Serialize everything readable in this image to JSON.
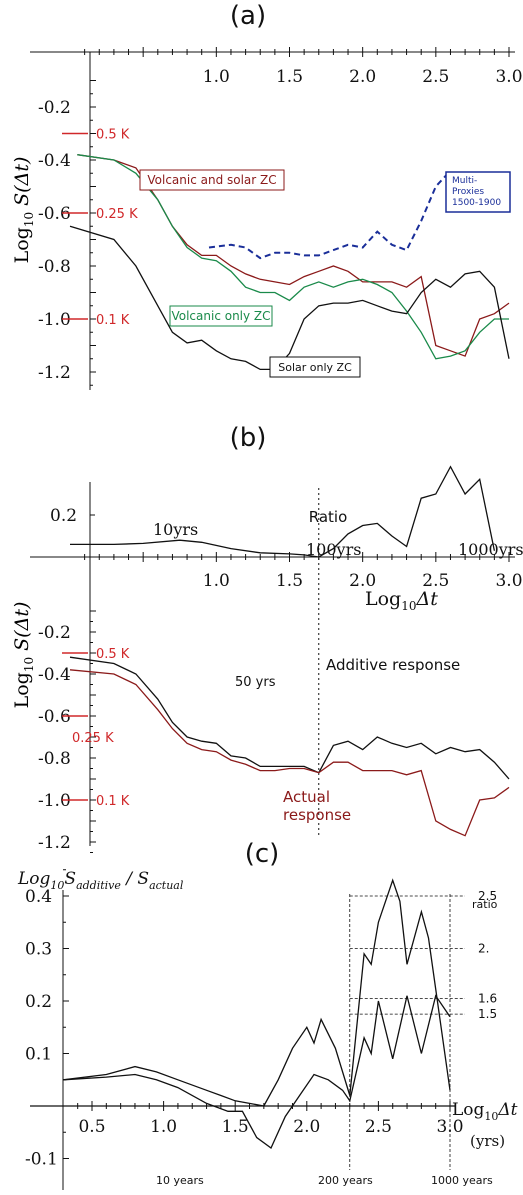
{
  "chart_data": [
    {
      "panel": "(a)",
      "type": "line",
      "xlim": [
        0.0,
        3.0
      ],
      "ylim": [
        -1.25,
        -0.1
      ],
      "x_ticks": [
        "1.0",
        "1.5",
        "2.0",
        "2.5",
        "3.0"
      ],
      "y_ticks": [
        "-0.2",
        "-0.4",
        "-0.6",
        "-0.8",
        "-1.0",
        "-1.2"
      ],
      "ylabel_main": "Log",
      "ylabel_sub": "10",
      "ylabel_rest": " S(Δt)",
      "temp_marks": [
        {
          "label": "0.5 K",
          "y": -0.3
        },
        {
          "label": "0.25 K",
          "y": -0.6
        },
        {
          "label": "0.1 K",
          "y": -1.0
        }
      ],
      "series": [
        {
          "name": "Volcanic and solar ZC",
          "color": "#8b1a1a",
          "x": [
            0.05,
            0.3,
            0.45,
            0.6,
            0.7,
            0.8,
            0.9,
            1.0,
            1.1,
            1.2,
            1.3,
            1.4,
            1.5,
            1.6,
            1.7,
            1.8,
            1.9,
            2.0,
            2.1,
            2.2,
            2.3,
            2.4,
            2.5,
            2.6,
            2.7,
            2.8,
            2.9,
            3.0
          ],
          "y": [
            -0.38,
            -0.4,
            -0.43,
            -0.55,
            -0.65,
            -0.72,
            -0.76,
            -0.76,
            -0.8,
            -0.83,
            -0.85,
            -0.86,
            -0.87,
            -0.84,
            -0.82,
            -0.8,
            -0.82,
            -0.86,
            -0.86,
            -0.86,
            -0.88,
            -0.84,
            -1.1,
            -1.12,
            -1.14,
            -1.0,
            -0.98,
            -0.94
          ]
        },
        {
          "name": "Volcanic only ZC",
          "color": "#1a8a4a",
          "x": [
            0.05,
            0.3,
            0.45,
            0.6,
            0.7,
            0.8,
            0.9,
            1.0,
            1.1,
            1.2,
            1.3,
            1.4,
            1.5,
            1.6,
            1.7,
            1.8,
            1.9,
            2.0,
            2.1,
            2.2,
            2.3,
            2.4,
            2.5,
            2.6,
            2.7,
            2.8,
            2.9,
            3.0
          ],
          "y": [
            -0.38,
            -0.4,
            -0.45,
            -0.55,
            -0.65,
            -0.73,
            -0.77,
            -0.78,
            -0.82,
            -0.88,
            -0.9,
            -0.9,
            -0.93,
            -0.88,
            -0.86,
            -0.88,
            -0.86,
            -0.85,
            -0.87,
            -0.9,
            -0.97,
            -1.05,
            -1.15,
            -1.14,
            -1.12,
            -1.05,
            -1.0,
            -1.0
          ]
        },
        {
          "name": "Solar only ZC",
          "color": "#111111",
          "x": [
            0.0,
            0.3,
            0.45,
            0.6,
            0.7,
            0.8,
            0.9,
            1.0,
            1.1,
            1.2,
            1.3,
            1.4,
            1.5,
            1.6,
            1.7,
            1.8,
            1.9,
            2.0,
            2.1,
            2.2,
            2.3,
            2.4,
            2.5,
            2.6,
            2.7,
            2.8,
            2.9,
            3.0
          ],
          "y": [
            -0.65,
            -0.7,
            -0.8,
            -0.95,
            -1.05,
            -1.09,
            -1.08,
            -1.12,
            -1.15,
            -1.16,
            -1.19,
            -1.19,
            -1.13,
            -1.0,
            -0.95,
            -0.94,
            -0.94,
            -0.93,
            -0.95,
            -0.97,
            -0.98,
            -0.9,
            -0.85,
            -0.88,
            -0.83,
            -0.82,
            -0.88,
            -1.15
          ]
        },
        {
          "name": "Multi-Proxies 1500-1900",
          "color": "#1a2e99",
          "dashed": true,
          "x": [
            0.95,
            1.1,
            1.2,
            1.3,
            1.4,
            1.5,
            1.6,
            1.7,
            1.8,
            1.9,
            2.0,
            2.1,
            2.2,
            2.3,
            2.4,
            2.5,
            2.6
          ],
          "y": [
            -0.73,
            -0.72,
            -0.73,
            -0.77,
            -0.75,
            -0.75,
            -0.76,
            -0.76,
            -0.74,
            -0.72,
            -0.73,
            -0.67,
            -0.72,
            -0.74,
            -0.63,
            -0.5,
            -0.44
          ]
        }
      ],
      "legend_boxes": [
        {
          "text": "Volcanic and solar ZC",
          "color": "#8b1a1a"
        },
        {
          "text": "Volcanic only ZC",
          "color": "#1a8a4a"
        },
        {
          "text": "Solar only ZC",
          "color": "#111111"
        }
      ],
      "proxy_box": [
        "Multi-",
        "Proxies",
        "1500-1900"
      ]
    },
    {
      "panel": "(b)",
      "type": "line",
      "xlim": [
        0.0,
        3.0
      ],
      "ylim": [
        -1.25,
        -0.1
      ],
      "x_ticks": [
        "1.0",
        "1.5",
        "2.0",
        "2.5",
        "3.0"
      ],
      "y_ticks": [
        "-0.2",
        "-0.4",
        "-0.6",
        "-0.8",
        "-1.0",
        "-1.2"
      ],
      "xlabel_main": "Log",
      "xlabel_sub": "10",
      "xlabel_rest": "Δt",
      "ratio_tick": "0.2",
      "ratio_title": "Ratio",
      "ratio_annotations": [
        "10yrs",
        "100yrs",
        "1000yrs"
      ],
      "vline_label": "50 yrs",
      "additive_label": "Additive response",
      "actual_label": [
        "Actual",
        "response"
      ],
      "temp_marks": [
        {
          "label": "0.5 K",
          "y": -0.3
        },
        {
          "label": "0.25 K",
          "y": -0.6
        },
        {
          "label": "0.1 K",
          "y": -1.0
        }
      ],
      "ratio_series": {
        "name": "Ratio",
        "color": "#111111",
        "x": [
          0.0,
          0.3,
          0.5,
          0.75,
          0.9,
          1.1,
          1.3,
          1.5,
          1.6,
          1.7,
          1.8,
          1.9,
          2.0,
          2.1,
          2.2,
          2.3,
          2.4,
          2.5,
          2.6,
          2.7,
          2.8,
          2.9
        ],
        "y": [
          0.06,
          0.06,
          0.065,
          0.08,
          0.07,
          0.04,
          0.02,
          0.015,
          0.01,
          0.0,
          0.04,
          0.11,
          0.15,
          0.16,
          0.1,
          0.05,
          0.28,
          0.3,
          0.43,
          0.3,
          0.37,
          0.03
        ]
      },
      "series": [
        {
          "name": "Additive response",
          "color": "#111111",
          "x": [
            0.0,
            0.3,
            0.45,
            0.6,
            0.7,
            0.8,
            0.9,
            1.0,
            1.1,
            1.2,
            1.3,
            1.4,
            1.5,
            1.6,
            1.7,
            1.8,
            1.9,
            2.0,
            2.1,
            2.2,
            2.3,
            2.4,
            2.5,
            2.6,
            2.7,
            2.8,
            2.9,
            3.0
          ],
          "y": [
            -0.32,
            -0.35,
            -0.4,
            -0.52,
            -0.63,
            -0.7,
            -0.72,
            -0.73,
            -0.79,
            -0.8,
            -0.84,
            -0.84,
            -0.84,
            -0.84,
            -0.87,
            -0.74,
            -0.72,
            -0.76,
            -0.7,
            -0.73,
            -0.75,
            -0.73,
            -0.78,
            -0.75,
            -0.77,
            -0.76,
            -0.82,
            -0.9
          ]
        },
        {
          "name": "Actual response",
          "color": "#8b1a1a",
          "x": [
            0.0,
            0.3,
            0.45,
            0.6,
            0.7,
            0.8,
            0.9,
            1.0,
            1.1,
            1.2,
            1.3,
            1.4,
            1.5,
            1.6,
            1.7,
            1.8,
            1.9,
            2.0,
            2.1,
            2.2,
            2.3,
            2.4,
            2.5,
            2.6,
            2.7,
            2.8,
            2.9,
            3.0
          ],
          "y": [
            -0.38,
            -0.4,
            -0.45,
            -0.57,
            -0.66,
            -0.73,
            -0.76,
            -0.77,
            -0.81,
            -0.83,
            -0.86,
            -0.86,
            -0.85,
            -0.85,
            -0.87,
            -0.82,
            -0.82,
            -0.86,
            -0.86,
            -0.86,
            -0.88,
            -0.86,
            -1.1,
            -1.14,
            -1.17,
            -1.0,
            -0.99,
            -0.94
          ]
        }
      ]
    },
    {
      "panel": "(c)",
      "type": "line",
      "xlim": [
        0.3,
        3.0
      ],
      "ylim": [
        -0.12,
        0.45
      ],
      "x_ticks": [
        "0.5",
        "1.0",
        "1.5",
        "2.0",
        "2.5",
        "3.0"
      ],
      "y_ticks": [
        "0.4",
        "0.3",
        "0.2",
        "0.1",
        "-0.1"
      ],
      "ylabel_parts": {
        "log": "Log",
        "sub10": "10",
        "s1": "S",
        "add": "additive",
        "slash": " / S",
        "act": "actual"
      },
      "xlabel_main": "Log",
      "xlabel_sub": "10",
      "xlabel_rest": "Δt",
      "xunit": "(yrs)",
      "ratio_header": "ratio",
      "ratio_levels": [
        {
          "label": "2.5",
          "y": 0.4
        },
        {
          "label": "2.",
          "y": 0.3
        },
        {
          "label": "1.6",
          "y": 0.205
        },
        {
          "label": "1.5",
          "y": 0.175
        }
      ],
      "vlines_x": [
        2.3,
        3.0
      ],
      "bottom_labels": [
        "10 years",
        "200 years",
        "1000 years"
      ],
      "series": [
        {
          "name": "upper",
          "color": "#111111",
          "x": [
            0.3,
            0.6,
            0.8,
            0.95,
            1.1,
            1.3,
            1.4,
            1.5,
            1.6,
            1.7,
            1.8,
            1.9,
            2.0,
            2.05,
            2.1,
            2.2,
            2.3,
            2.4,
            2.45,
            2.5,
            2.6,
            2.65,
            2.7,
            2.8,
            2.85,
            3.0
          ],
          "y": [
            0.05,
            0.06,
            0.075,
            0.065,
            0.05,
            0.03,
            0.02,
            0.01,
            0.005,
            0.0,
            0.05,
            0.11,
            0.15,
            0.12,
            0.165,
            0.11,
            0.02,
            0.29,
            0.27,
            0.35,
            0.43,
            0.39,
            0.27,
            0.37,
            0.32,
            0.03
          ]
        },
        {
          "name": "lower",
          "color": "#111111",
          "x": [
            0.3,
            0.6,
            0.8,
            0.95,
            1.1,
            1.3,
            1.45,
            1.55,
            1.65,
            1.75,
            1.85,
            1.95,
            2.05,
            2.15,
            2.25,
            2.3,
            2.4,
            2.45,
            2.5,
            2.6,
            2.7,
            2.8,
            2.9,
            3.0
          ],
          "y": [
            0.05,
            0.055,
            0.06,
            0.05,
            0.035,
            0.005,
            -0.01,
            -0.01,
            -0.06,
            -0.08,
            -0.02,
            0.02,
            0.06,
            0.05,
            0.03,
            0.01,
            0.13,
            0.1,
            0.2,
            0.09,
            0.21,
            0.1,
            0.21,
            0.17
          ]
        }
      ]
    }
  ],
  "panel_titles": [
    "(a)",
    "(b)",
    "(c)"
  ]
}
